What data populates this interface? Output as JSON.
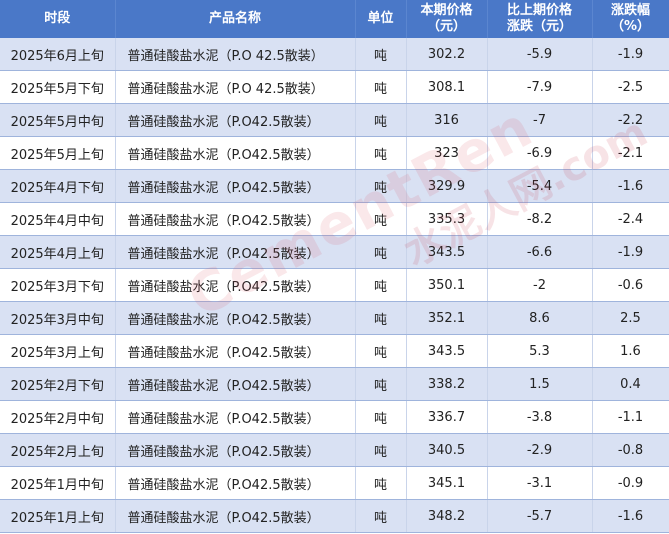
{
  "table": {
    "headers": [
      {
        "line1": "时段",
        "line2": ""
      },
      {
        "line1": "产品名称",
        "line2": ""
      },
      {
        "line1": "单位",
        "line2": ""
      },
      {
        "line1": "本期价格",
        "line2": "（元）"
      },
      {
        "line1": "比上期价格",
        "line2": "涨跌（元）"
      },
      {
        "line1": "涨跌幅",
        "line2": "（%）"
      }
    ],
    "rows": [
      [
        "2025年6月上旬",
        "普通硅酸盐水泥（P.O 42.5散装）",
        "吨",
        "302.2",
        "-5.9",
        "-1.9"
      ],
      [
        "2025年5月下旬",
        "普通硅酸盐水泥（P.O 42.5散装）",
        "吨",
        "308.1",
        "-7.9",
        "-2.5"
      ],
      [
        "2025年5月中旬",
        "普通硅酸盐水泥（P.O42.5散装）",
        "吨",
        "316",
        "-7",
        "-2.2"
      ],
      [
        "2025年5月上旬",
        "普通硅酸盐水泥（P.O42.5散装）",
        "吨",
        "323",
        "-6.9",
        "-2.1"
      ],
      [
        "2025年4月下旬",
        "普通硅酸盐水泥（P.O42.5散装）",
        "吨",
        "329.9",
        "-5.4",
        "-1.6"
      ],
      [
        "2025年4月中旬",
        "普通硅酸盐水泥（P.O42.5散装）",
        "吨",
        "335.3",
        "-8.2",
        "-2.4"
      ],
      [
        "2025年4月上旬",
        "普通硅酸盐水泥（P.O42.5散装）",
        "吨",
        "343.5",
        "-6.6",
        "-1.9"
      ],
      [
        "2025年3月下旬",
        "普通硅酸盐水泥（P.O42.5散装）",
        "吨",
        "350.1",
        "-2",
        "-0.6"
      ],
      [
        "2025年3月中旬",
        "普通硅酸盐水泥（P.O42.5散装）",
        "吨",
        "352.1",
        "8.6",
        "2.5"
      ],
      [
        "2025年3月上旬",
        "普通硅酸盐水泥（P.O42.5散装）",
        "吨",
        "343.5",
        "5.3",
        "1.6"
      ],
      [
        "2025年2月下旬",
        "普通硅酸盐水泥（P.O42.5散装）",
        "吨",
        "338.2",
        "1.5",
        "0.4"
      ],
      [
        "2025年2月中旬",
        "普通硅酸盐水泥（P.O42.5散装）",
        "吨",
        "336.7",
        "-3.8",
        "-1.1"
      ],
      [
        "2025年2月上旬",
        "普通硅酸盐水泥（P.O42.5散装）",
        "吨",
        "340.5",
        "-2.9",
        "-0.8"
      ],
      [
        "2025年1月中旬",
        "普通硅酸盐水泥（P.O42.5散装）",
        "吨",
        "345.1",
        "-3.1",
        "-0.9"
      ],
      [
        "2025年1月上旬",
        "普通硅酸盐水泥（P.O42.5散装）",
        "吨",
        "348.2",
        "-5.7",
        "-1.6"
      ]
    ]
  },
  "watermark": {
    "text": "CementRen",
    "text2": "水泥人网.com"
  },
  "colors": {
    "header": "#4A78C8",
    "shade": "#D9E1F3"
  }
}
